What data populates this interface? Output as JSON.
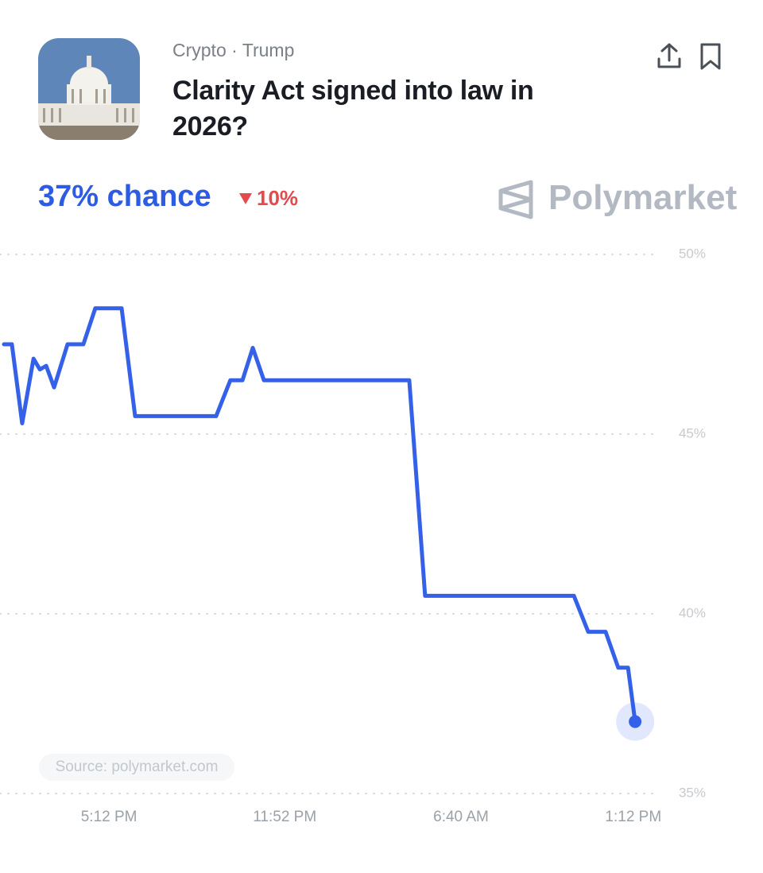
{
  "header": {
    "category": "Crypto · Trump",
    "question": "Clarity Act signed into law in 2026?",
    "chance": "37% chance",
    "change": "10%",
    "brand": "Polymarket",
    "source": "Source: polymarket.com"
  },
  "chart_data": {
    "type": "line",
    "x": [
      0.15,
      0.45,
      0.84,
      1.27,
      1.51,
      1.75,
      2.05,
      2.56,
      3.16,
      3.61,
      4.61,
      5.12,
      8.19,
      8.73,
      9.19,
      9.58,
      10.0,
      15.51,
      16.11,
      21.75,
      22.29,
      22.95,
      23.43,
      23.8,
      24.07
    ],
    "series": [
      {
        "name": "Yes",
        "color": "#3461e8",
        "values": [
          47.5,
          47.5,
          45.3,
          47.1,
          46.8,
          46.9,
          46.3,
          47.5,
          47.5,
          48.5,
          48.5,
          45.5,
          45.5,
          46.5,
          46.5,
          47.4,
          46.5,
          46.5,
          40.5,
          40.5,
          39.5,
          39.5,
          38.5,
          38.5,
          37
        ]
      }
    ],
    "xlim": [
      0,
      25
    ],
    "xticks": [
      {
        "value": 4.13,
        "label": "5:12 PM"
      },
      {
        "value": 10.79,
        "label": "11:52 PM"
      },
      {
        "value": 17.47,
        "label": "6:40 AM"
      },
      {
        "value": 24.0,
        "label": "1:12 PM"
      }
    ],
    "ylim": [
      35,
      50
    ],
    "yticks": [
      {
        "value": 50,
        "label": "50%"
      },
      {
        "value": 45,
        "label": "45%"
      },
      {
        "value": 40,
        "label": "40%"
      },
      {
        "value": 35,
        "label": "35%"
      }
    ],
    "grid": true
  }
}
